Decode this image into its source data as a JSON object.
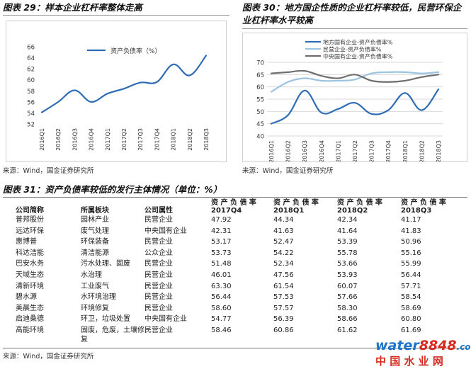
{
  "fig29": {
    "title": "图表 29：样本企业杠杆率整体走高",
    "source": "来源：Wind，国金证券研究所"
  },
  "fig30": {
    "title_line1": "图表 30：地方国企性质的企业杠杆率较低，民营环保企",
    "title_line2": "业杠杆率水平较高",
    "source": "来源：Wind，国金证券研究所"
  },
  "fig31": {
    "title": "图表 31：资产负债率较低的发行主体情况（单位：%）",
    "source": "来源：Wind，国金证券研究所"
  },
  "watermark": {
    "line1_a": "water",
    "line1_b": "8848",
    "line1_c": ".com",
    "line2": "中 国 水 业 网"
  },
  "colors": {
    "accent_blue": "#2e6cb5",
    "light_blue": "#9bc4e2",
    "gray": "#6f6f6f",
    "watermark_blue": "#1d74c8",
    "watermark_red": "#d62a1f"
  },
  "chart_data": [
    {
      "type": "line",
      "categories": [
        "2016Q1",
        "2016Q2",
        "2016Q3",
        "2016Q4",
        "2017Q1",
        "2017Q2",
        "2017Q3",
        "2017Q4",
        "2018Q1",
        "2018Q2",
        "2018Q3"
      ],
      "series": [
        {
          "name": "资产负债率（%）",
          "values": [
            54.1,
            56.0,
            58.1,
            56.0,
            57.5,
            58.4,
            59.5,
            59.6,
            62.8,
            60.8,
            64.4
          ]
        }
      ],
      "ylim": [
        52,
        66
      ],
      "yticks": [
        52,
        54,
        56,
        58,
        60,
        62,
        64,
        66
      ],
      "legend": "top-left",
      "grid": false
    },
    {
      "type": "line",
      "categories": [
        "2016Q1",
        "2016Q2",
        "2016Q3",
        "2016Q4",
        "2017Q1",
        "2017Q2",
        "2017Q3",
        "2017Q4",
        "2018Q1",
        "2018Q2",
        "2018Q3"
      ],
      "series": [
        {
          "name": "地方国有企业-资产负债率%",
          "values": [
            45.0,
            48.5,
            58.5,
            49.5,
            51.0,
            53.5,
            49.0,
            50.5,
            57.5,
            50.5,
            59.0
          ]
        },
        {
          "name": "民营企业-资产负债率%",
          "values": [
            58.0,
            62.0,
            63.5,
            62.5,
            62.5,
            63.0,
            65.5,
            66.0,
            66.0,
            65.5,
            66.0
          ]
        },
        {
          "name": "中央国有企业-资产负债率%",
          "values": [
            65.5,
            66.0,
            66.5,
            64.5,
            63.5,
            65.0,
            62.5,
            62.0,
            62.5,
            64.0,
            65.0
          ]
        }
      ],
      "ylim": [
        40,
        70
      ],
      "yticks": [
        40,
        45,
        50,
        55,
        60,
        65,
        70
      ],
      "legend": "top",
      "grid": true
    },
    {
      "type": "table",
      "columns": [
        "公司简称",
        "所属板块",
        "公司属性",
        "资产负债率2017Q4",
        "资产负债率2018Q1",
        "资产负债率2018Q2",
        "资产负债率2018Q3"
      ],
      "header_top": [
        "资 产 负 债 率",
        "资 产 负 债 率",
        "资 产 负 债 率",
        "资 产 负 债 率"
      ],
      "header_bottom": [
        "2017Q4",
        "2018Q1",
        "2018Q2",
        "2018Q3"
      ],
      "rows": [
        [
          "普邦股份",
          "园林产业",
          "民营企业",
          "47.92",
          "44.34",
          "42.34",
          "41.17"
        ],
        [
          "远达环保",
          "废气处理",
          "中央国有企业",
          "42.31",
          "41.63",
          "41.64",
          "41.83"
        ],
        [
          "惠博普",
          "环保装备",
          "民营企业",
          "53.17",
          "52.47",
          "53.39",
          "50.96"
        ],
        [
          "科达洁能",
          "清洁能源",
          "公众企业",
          "53.73",
          "54.22",
          "55.78",
          "55.16"
        ],
        [
          "巴安水务",
          "污水处理、固废",
          "民营企业",
          "51.48",
          "52.34",
          "53.66",
          "55.99"
        ],
        [
          "天域生态",
          "水治理",
          "民营企业",
          "46.01",
          "47.56",
          "53.93",
          "56.44"
        ],
        [
          "清新环境",
          "工业废气",
          "民营企业",
          "63.30",
          "61.54",
          "60.07",
          "57.71"
        ],
        [
          "碧水源",
          "水环境治理",
          "民营企业",
          "56.44",
          "57.53",
          "57.66",
          "58.54"
        ],
        [
          "美晨生态",
          "环境修复",
          "民营企业",
          "58.60",
          "57.57",
          "58.30",
          "58.69"
        ],
        [
          "启迪桑德",
          "环卫，垃圾处置",
          "中央国有企业",
          "54.77",
          "56.39",
          "58.66",
          "60.80"
        ],
        [
          "高能环境",
          "固废，危废，土壤修复",
          "民营企业",
          "58.46",
          "60.86",
          "61.62",
          "61.69"
        ]
      ]
    }
  ]
}
